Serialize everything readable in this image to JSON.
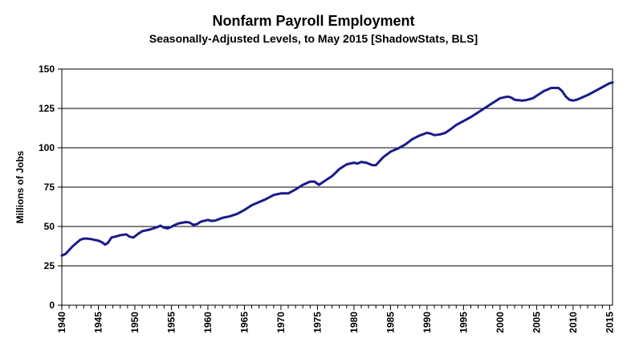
{
  "chart_data": {
    "type": "line",
    "title": "Nonfarm Payroll Employment",
    "subtitle": "Seasonally-Adjusted Levels, to May 2015 [ShadowStats, BLS]",
    "ylabel": "Millions  of Jobs",
    "xlabel": "",
    "xlim": [
      1940,
      2015.4
    ],
    "ylim": [
      0,
      150
    ],
    "yticks": [
      0,
      25,
      50,
      75,
      100,
      125,
      150
    ],
    "xticks": [
      1940,
      1945,
      1950,
      1955,
      1960,
      1965,
      1970,
      1975,
      1980,
      1985,
      1990,
      1995,
      2000,
      2005,
      2010,
      2015
    ],
    "grid": "horizontal",
    "legend": "none",
    "series": [
      {
        "color": "#1a1a8c",
        "x": [
          1940.0,
          1940.5,
          1941.0,
          1941.5,
          1942.0,
          1942.5,
          1943.0,
          1943.5,
          1944.0,
          1944.5,
          1945.0,
          1945.5,
          1945.9,
          1946.3,
          1946.8,
          1947.5,
          1948.0,
          1948.8,
          1949.3,
          1949.8,
          1950.5,
          1951.0,
          1952.0,
          1953.0,
          1953.5,
          1954.0,
          1954.5,
          1955.0,
          1955.5,
          1956.0,
          1957.0,
          1957.5,
          1958.0,
          1958.5,
          1959.0,
          1960.0,
          1960.5,
          1961.0,
          1962.0,
          1963.0,
          1964.0,
          1965.0,
          1966.0,
          1967.0,
          1968.0,
          1969.0,
          1970.0,
          1970.5,
          1971.0,
          1972.0,
          1973.0,
          1974.0,
          1974.6,
          1975.2,
          1976.0,
          1977.0,
          1978.0,
          1979.0,
          1980.0,
          1980.5,
          1981.0,
          1981.7,
          1982.5,
          1983.0,
          1984.0,
          1985.0,
          1986.0,
          1987.0,
          1988.0,
          1989.0,
          1990.0,
          1990.5,
          1991.0,
          1991.8,
          1992.5,
          1993.0,
          1994.0,
          1995.0,
          1996.0,
          1997.0,
          1998.0,
          1999.0,
          2000.0,
          2001.0,
          2001.5,
          2002.0,
          2003.0,
          2003.6,
          2004.5,
          2005.0,
          2006.0,
          2007.0,
          2008.0,
          2008.5,
          2009.0,
          2009.5,
          2010.0,
          2010.5,
          2011.0,
          2012.0,
          2013.0,
          2014.0,
          2015.0,
          2015.4
        ],
        "y": [
          31.5,
          32.5,
          35.0,
          37.5,
          39.5,
          41.5,
          42.3,
          42.3,
          42.0,
          41.5,
          41.0,
          40.0,
          38.5,
          39.5,
          43.0,
          43.8,
          44.5,
          45.0,
          43.5,
          43.0,
          45.5,
          47.0,
          48.0,
          49.5,
          50.5,
          49.3,
          48.8,
          49.8,
          51.0,
          52.0,
          52.8,
          52.5,
          51.0,
          51.5,
          53.0,
          54.2,
          53.5,
          53.8,
          55.5,
          56.5,
          58.0,
          60.5,
          63.5,
          65.5,
          67.5,
          70.0,
          71.0,
          71.0,
          71.0,
          73.5,
          76.5,
          78.5,
          78.5,
          76.5,
          79.0,
          82.0,
          86.5,
          89.5,
          90.5,
          90.0,
          91.0,
          90.5,
          89.0,
          89.0,
          94.0,
          97.5,
          99.5,
          102.0,
          105.5,
          107.8,
          109.5,
          109.0,
          108.0,
          108.5,
          109.5,
          111.0,
          114.5,
          117.0,
          119.5,
          122.5,
          125.5,
          128.5,
          131.5,
          132.5,
          132.0,
          130.5,
          130.0,
          130.3,
          131.5,
          133.0,
          136.0,
          138.0,
          138.0,
          136.0,
          132.5,
          130.5,
          130.0,
          130.5,
          131.5,
          133.5,
          136.0,
          138.5,
          141.0,
          141.5
        ]
      }
    ]
  }
}
